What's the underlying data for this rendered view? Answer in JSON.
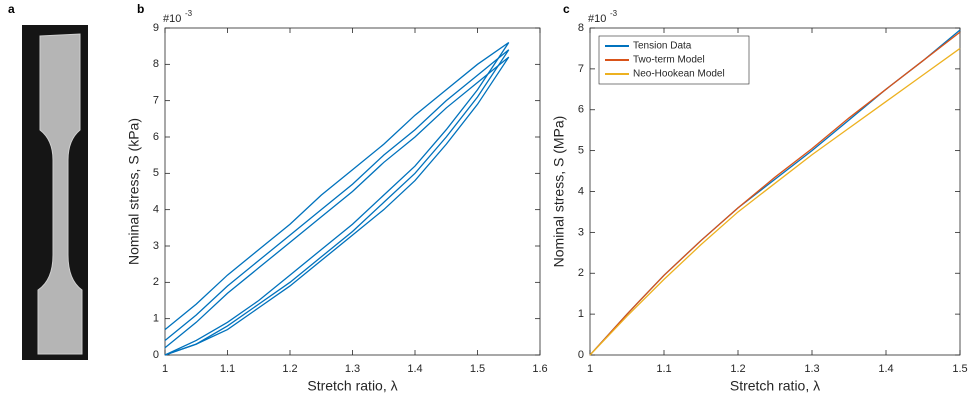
{
  "panel_labels": [
    "a",
    "b",
    "c"
  ],
  "chart_data": [
    {
      "type": "line",
      "xlabel": "Stretch ratio, λ",
      "ylabel": "Nominal stress, S (kPa)",
      "multiplier": {
        "base": "#10",
        "exponent": "-3"
      },
      "xlim": [
        1,
        1.6
      ],
      "xticks": [
        1,
        1.1,
        1.2,
        1.3,
        1.4,
        1.5,
        1.6
      ],
      "ylim": [
        0,
        9
      ],
      "yticks": [
        0,
        1,
        2,
        3,
        4,
        5,
        6,
        7,
        8,
        9
      ],
      "color": "#0072bd",
      "grid": false,
      "x": [
        1.0,
        1.05,
        1.1,
        1.15,
        1.2,
        1.25,
        1.3,
        1.35,
        1.4,
        1.45,
        1.5,
        1.55,
        1.5,
        1.45,
        1.4,
        1.35,
        1.3,
        1.25,
        1.2,
        1.15,
        1.1,
        1.05,
        1.0
      ],
      "series": [
        {
          "values": [
            0.0,
            0.4,
            0.9,
            1.5,
            2.2,
            2.9,
            3.6,
            4.4,
            5.2,
            6.2,
            7.3,
            8.6,
            8.0,
            7.3,
            6.6,
            5.8,
            5.1,
            4.4,
            3.6,
            2.9,
            2.2,
            1.4,
            0.7
          ]
        },
        {
          "values": [
            0.0,
            0.3,
            0.8,
            1.4,
            2.0,
            2.7,
            3.4,
            4.2,
            5.0,
            6.0,
            7.1,
            8.4,
            7.7,
            7.0,
            6.2,
            5.5,
            4.7,
            4.0,
            3.3,
            2.6,
            1.9,
            1.1,
            0.4
          ]
        },
        {
          "values": [
            0.0,
            0.3,
            0.7,
            1.3,
            1.9,
            2.6,
            3.3,
            4.0,
            4.8,
            5.8,
            6.9,
            8.2,
            7.5,
            6.8,
            6.0,
            5.3,
            4.5,
            3.8,
            3.1,
            2.4,
            1.7,
            0.9,
            0.2
          ]
        }
      ]
    },
    {
      "type": "line",
      "xlabel": "Stretch ratio, λ",
      "ylabel": "Nominal stress, S (MPa)",
      "multiplier": {
        "base": "#10",
        "exponent": "-3"
      },
      "xlim": [
        1,
        1.5
      ],
      "xticks": [
        1,
        1.1,
        1.2,
        1.3,
        1.4,
        1.5
      ],
      "ylim": [
        0,
        8
      ],
      "yticks": [
        0,
        1,
        2,
        3,
        4,
        5,
        6,
        7,
        8
      ],
      "grid": false,
      "legend": "upper left",
      "x": [
        1.0,
        1.05,
        1.1,
        1.15,
        1.2,
        1.25,
        1.3,
        1.35,
        1.4,
        1.45,
        1.5
      ],
      "series": [
        {
          "name": "Tension Data",
          "color": "#0072bd",
          "values": [
            0.0,
            1.0,
            1.95,
            2.8,
            3.6,
            4.3,
            5.0,
            5.75,
            6.5,
            7.2,
            7.95
          ]
        },
        {
          "name": "Two-term Model",
          "color": "#d95319",
          "values": [
            0.0,
            1.0,
            1.95,
            2.8,
            3.6,
            4.35,
            5.05,
            5.8,
            6.5,
            7.2,
            7.9
          ]
        },
        {
          "name": "Neo-Hookean Model",
          "color": "#edb120",
          "values": [
            0.0,
            0.95,
            1.85,
            2.7,
            3.5,
            4.2,
            4.9,
            5.55,
            6.2,
            6.85,
            7.5
          ]
        }
      ]
    }
  ]
}
